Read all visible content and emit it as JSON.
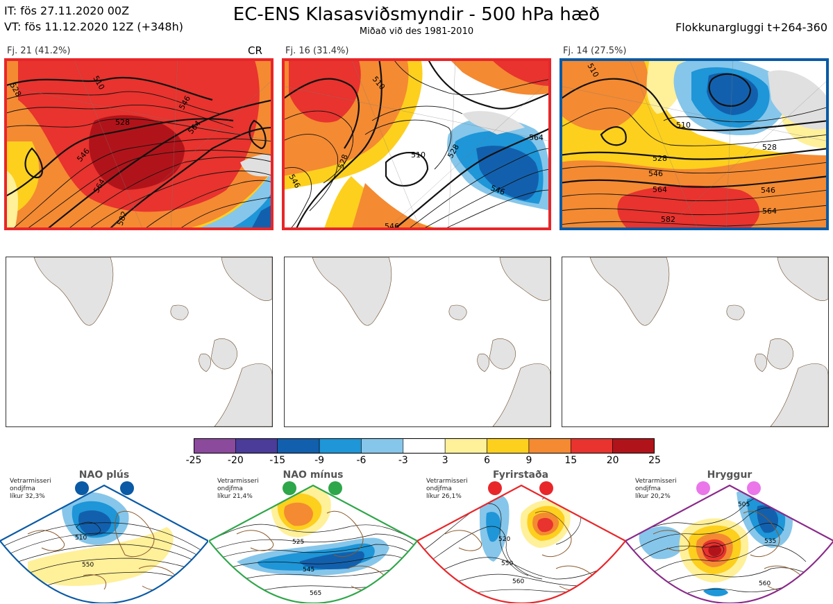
{
  "header": {
    "it_line": "IT: fös 27.11.2020 00Z",
    "vt_line": "VT: fös 11.12.2020 12Z  (+348h)",
    "title": "EC-ENS Klasasviðsmyndir - 500 hPa hæð",
    "subtitle": "Miðað við des 1981-2010",
    "window": "Flokkunargluggi t+264-360"
  },
  "clusters": [
    {
      "label": "Fj. 21 (41.2%)",
      "tag": "CR",
      "frame_color": "#e8262a",
      "contour_labels": [
        "510",
        "528",
        "546",
        "564",
        "564",
        "582",
        "546",
        "528"
      ]
    },
    {
      "label": "Fj. 16 (31.4%)",
      "tag": "",
      "frame_color": "#e8262a",
      "contour_labels": [
        "510",
        "528",
        "546",
        "510",
        "528",
        "546",
        "546",
        "564"
      ]
    },
    {
      "label": "Fj. 14 (27.5%)",
      "tag": "",
      "frame_color": "#0a5aa5",
      "contour_labels": [
        "510",
        "510",
        "528",
        "528",
        "546",
        "546",
        "564",
        "564",
        "582"
      ]
    }
  ],
  "colorbar": {
    "colors": [
      "#8b4a9c",
      "#4a3c98",
      "#1260ad",
      "#1e96d8",
      "#86c6ea",
      "#ffffff",
      "#fff09a",
      "#fdd01e",
      "#f48a32",
      "#e8332e",
      "#b0141a"
    ],
    "labels": [
      "-25",
      "-20",
      "-15",
      "-9",
      "-6",
      "-3",
      "3",
      "6",
      "9",
      "15",
      "20",
      "25"
    ]
  },
  "regimes": [
    {
      "name": "NAO plús",
      "note1": "Vetrarmisseri",
      "note2": "ondjfma",
      "note3": "líkur 32,3%",
      "color": "#0a5aa5",
      "dot": "#0a5aa5",
      "labels": [
        "510",
        "550"
      ]
    },
    {
      "name": "NAO mínus",
      "note1": "Vetrarmisseri",
      "note2": "ondjfma",
      "note3": "líkur 21,4%",
      "color": "#2ea64a",
      "dot": "#2ea64a",
      "labels": [
        "525",
        "545",
        "565"
      ]
    },
    {
      "name": "Fyrirstaða",
      "note1": "Vetrarmisseri",
      "note2": "ondjfma",
      "note3": "líkur 26,1%",
      "color": "#e8262a",
      "dot": "#e8262a",
      "labels": [
        "520",
        "550",
        "560"
      ]
    },
    {
      "name": "Hryggur",
      "note1": "Vetrarmisseri",
      "note2": "ondjfma",
      "note3": "líkur 20,2%",
      "color": "#8a2a8a",
      "dot": "#ea76ea",
      "labels": [
        "505",
        "535",
        "560"
      ]
    }
  ]
}
